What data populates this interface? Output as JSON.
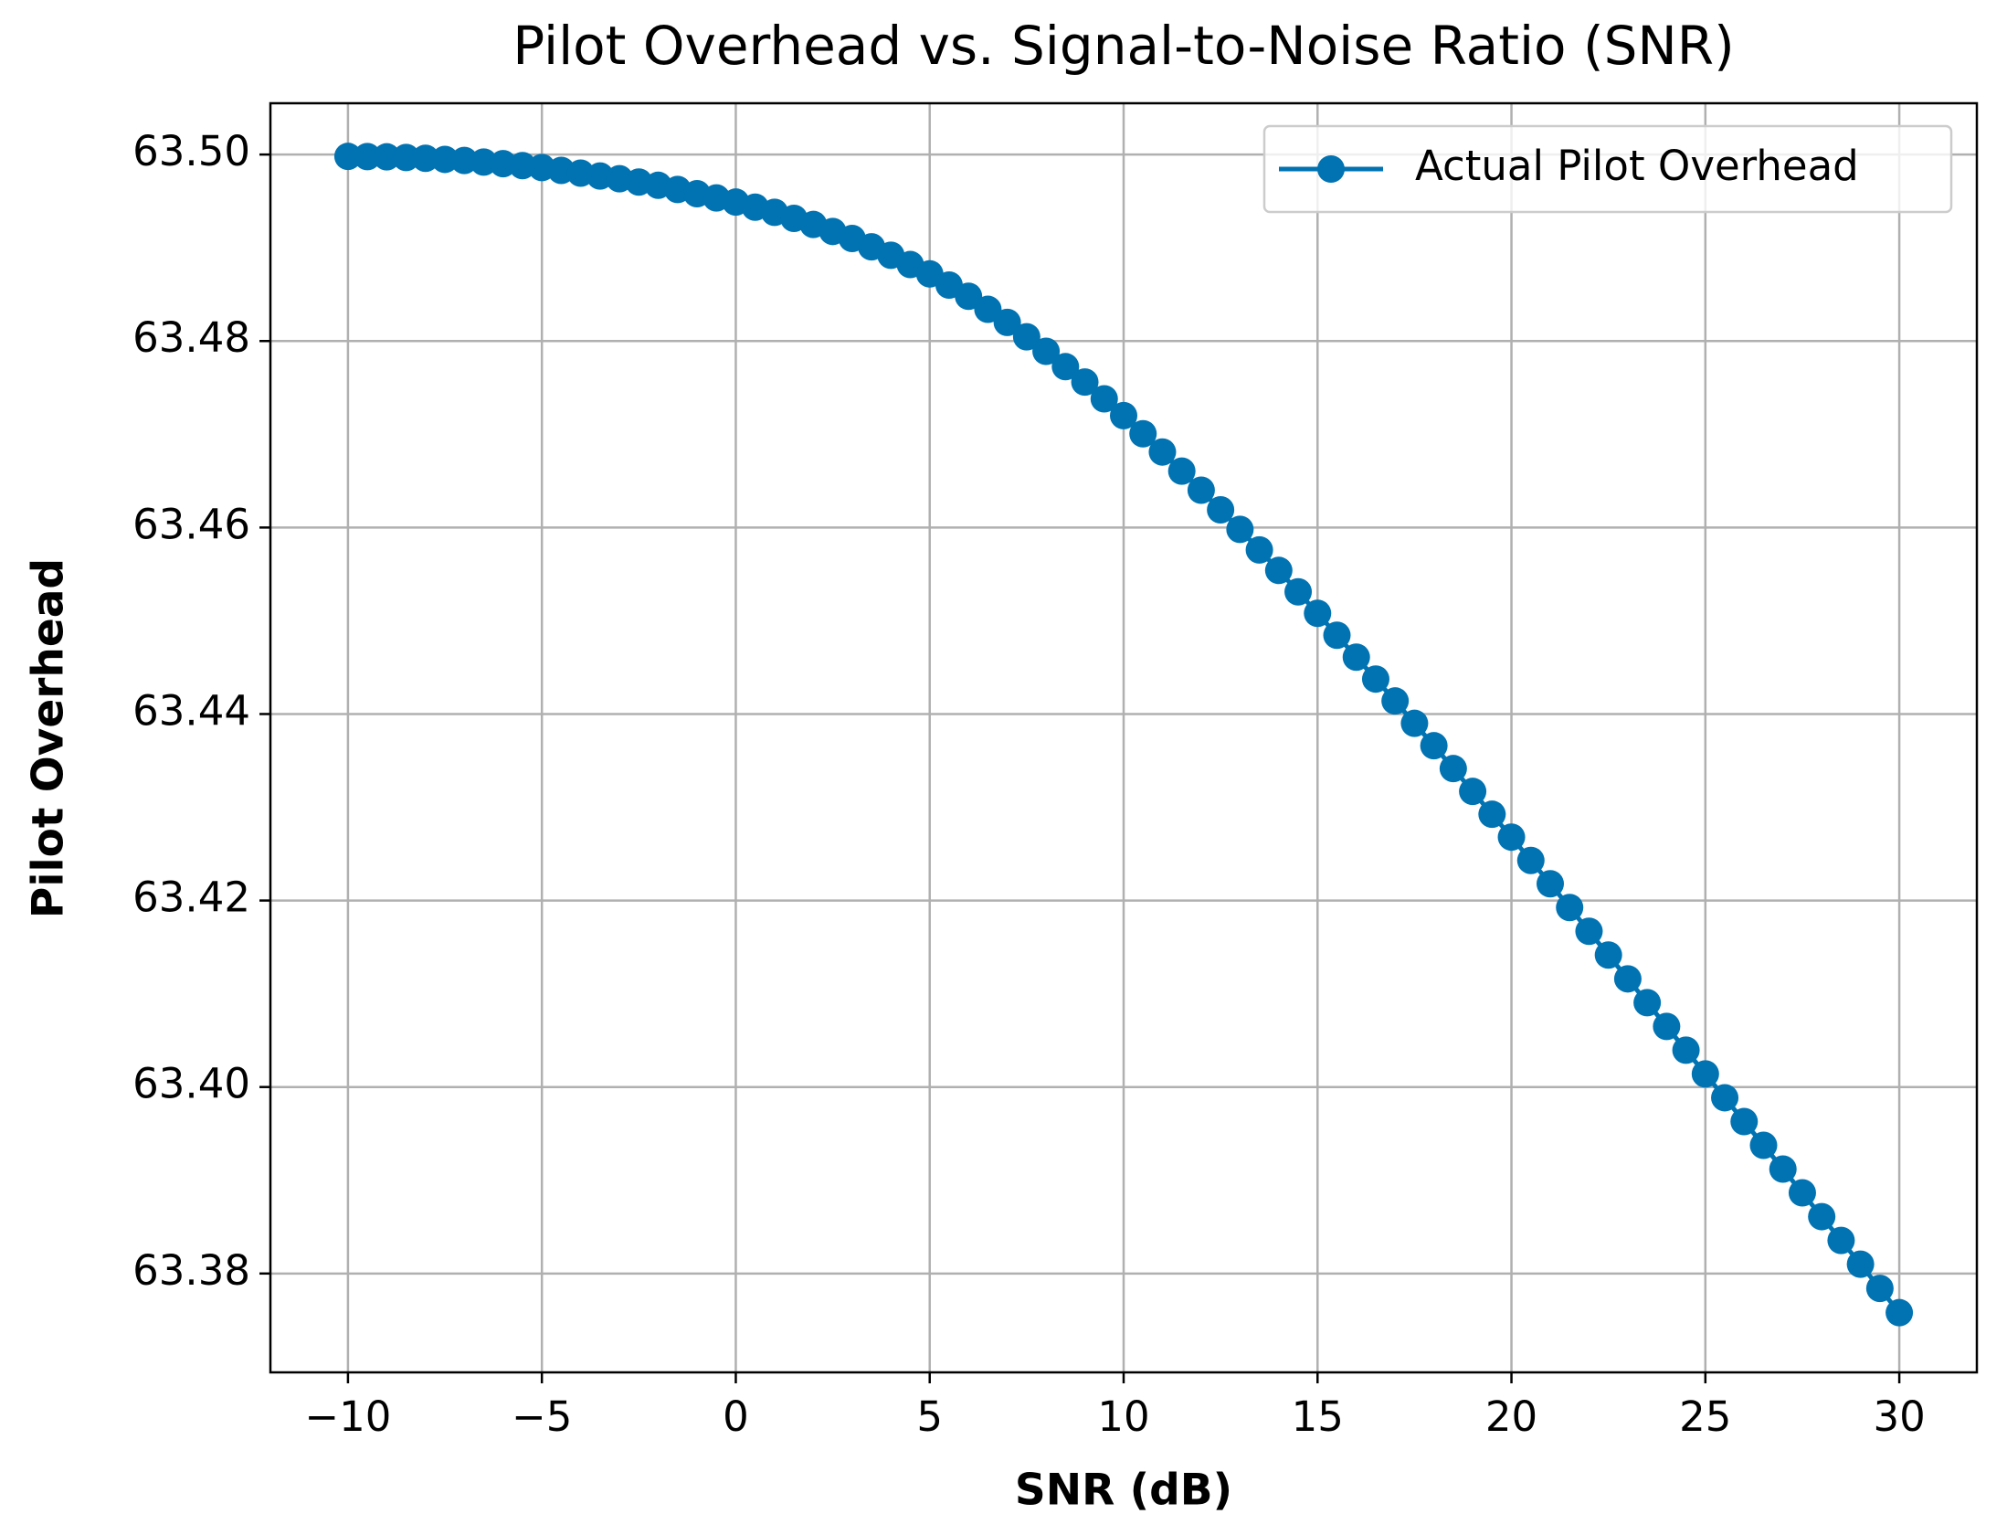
{
  "chart_data": {
    "type": "line",
    "title": "Pilot Overhead vs. Signal-to-Noise Ratio (SNR)",
    "x_label": "SNR (dB)",
    "y_label": "Pilot Overhead",
    "x": [
      -10,
      -9.5,
      -9,
      -8.5,
      -8,
      -7.5,
      -7,
      -6.5,
      -6,
      -5.5,
      -5,
      -4.5,
      -4,
      -3.5,
      -3,
      -2.5,
      -2,
      -1.5,
      -1,
      -0.5,
      0,
      0.5,
      1,
      1.5,
      2,
      2.5,
      3,
      3.5,
      4,
      4.5,
      5,
      5.5,
      6,
      6.5,
      7,
      7.5,
      8,
      8.5,
      9,
      9.5,
      10,
      10.5,
      11,
      11.5,
      12,
      12.5,
      13,
      13.5,
      14,
      14.5,
      15,
      15.5,
      16,
      16.5,
      17,
      17.5,
      18,
      18.5,
      19,
      19.5,
      20,
      20.5,
      21,
      21.5,
      22,
      22.5,
      23,
      23.5,
      24,
      24.5,
      25,
      25.5,
      26,
      26.5,
      27,
      27.5,
      28,
      28.5,
      29,
      29.5,
      30
    ],
    "series": [
      {
        "name": "Actual Pilot Overhead",
        "color": "#0173b2",
        "values": [
          63.4998,
          63.49978,
          63.49975,
          63.49968,
          63.4996,
          63.49948,
          63.49936,
          63.49919,
          63.49902,
          63.49881,
          63.4986,
          63.4983,
          63.498,
          63.4977,
          63.4974,
          63.49705,
          63.4967,
          63.49625,
          63.4958,
          63.49535,
          63.4949,
          63.49435,
          63.4938,
          63.49315,
          63.4925,
          63.49175,
          63.491,
          63.4901,
          63.4892,
          63.4882,
          63.4872,
          63.486,
          63.4848,
          63.4834,
          63.482,
          63.48045,
          63.4789,
          63.47725,
          63.4756,
          63.4738,
          63.472,
          63.47005,
          63.4681,
          63.46605,
          63.464,
          63.4619,
          63.4598,
          63.4576,
          63.4554,
          63.4531,
          63.4508,
          63.44845,
          63.4461,
          63.44375,
          63.4414,
          63.439,
          63.4366,
          63.43415,
          63.4317,
          63.42925,
          63.4268,
          63.4243,
          63.4218,
          63.41925,
          63.4167,
          63.41415,
          63.4116,
          63.40905,
          63.4065,
          63.40395,
          63.4014,
          63.39885,
          63.3963,
          63.39375,
          63.3912,
          63.38865,
          63.3861,
          63.38355,
          63.381,
          63.3784,
          63.3758
        ]
      }
    ],
    "xlim": [
      -12,
      32
    ],
    "ylim": [
      63.3694,
      63.5055
    ],
    "xticks": [
      {
        "value": -10,
        "label": "−10"
      },
      {
        "value": -5,
        "label": "−5"
      },
      0,
      5,
      10,
      15,
      20,
      25,
      30
    ],
    "yticks": [
      63.38,
      {
        "value": 63.4,
        "label": "63.40"
      },
      63.42,
      63.44,
      63.46,
      63.48,
      {
        "value": 63.5,
        "label": "63.50"
      }
    ],
    "grid": true,
    "legend": "upper right"
  }
}
